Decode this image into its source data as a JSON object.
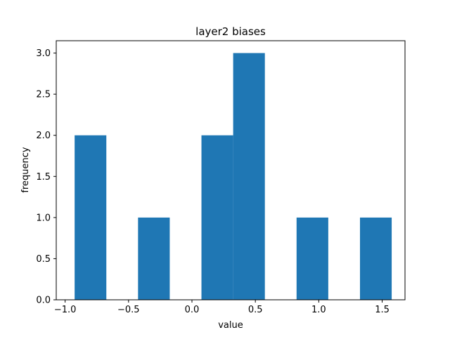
{
  "chart_data": {
    "type": "bar",
    "title": "layer2 biases",
    "xlabel": "value",
    "ylabel": "frequency",
    "xlim": [
      -1.07,
      1.68
    ],
    "ylim": [
      0,
      3.15
    ],
    "grid": false,
    "bar_color": "#1f77b4",
    "bins": [
      {
        "x0": -0.925,
        "x1": -0.675,
        "count": 2
      },
      {
        "x0": -0.675,
        "x1": -0.425,
        "count": 0
      },
      {
        "x0": -0.425,
        "x1": -0.175,
        "count": 1
      },
      {
        "x0": -0.175,
        "x1": 0.075,
        "count": 0
      },
      {
        "x0": 0.075,
        "x1": 0.325,
        "count": 2
      },
      {
        "x0": 0.325,
        "x1": 0.575,
        "count": 3
      },
      {
        "x0": 0.575,
        "x1": 0.825,
        "count": 0
      },
      {
        "x0": 0.825,
        "x1": 1.075,
        "count": 1
      },
      {
        "x0": 1.075,
        "x1": 1.325,
        "count": 0
      },
      {
        "x0": 1.325,
        "x1": 1.575,
        "count": 1
      }
    ],
    "xticks": [
      {
        "value": -1.0,
        "label": "−1.0"
      },
      {
        "value": -0.5,
        "label": "−0.5"
      },
      {
        "value": 0.0,
        "label": "0.0"
      },
      {
        "value": 0.5,
        "label": "0.5"
      },
      {
        "value": 1.0,
        "label": "1.0"
      },
      {
        "value": 1.5,
        "label": "1.5"
      }
    ],
    "yticks": [
      {
        "value": 0.0,
        "label": "0.0"
      },
      {
        "value": 0.5,
        "label": "0.5"
      },
      {
        "value": 1.0,
        "label": "1.0"
      },
      {
        "value": 1.5,
        "label": "1.5"
      },
      {
        "value": 2.0,
        "label": "2.0"
      },
      {
        "value": 2.5,
        "label": "2.5"
      },
      {
        "value": 3.0,
        "label": "3.0"
      }
    ]
  }
}
